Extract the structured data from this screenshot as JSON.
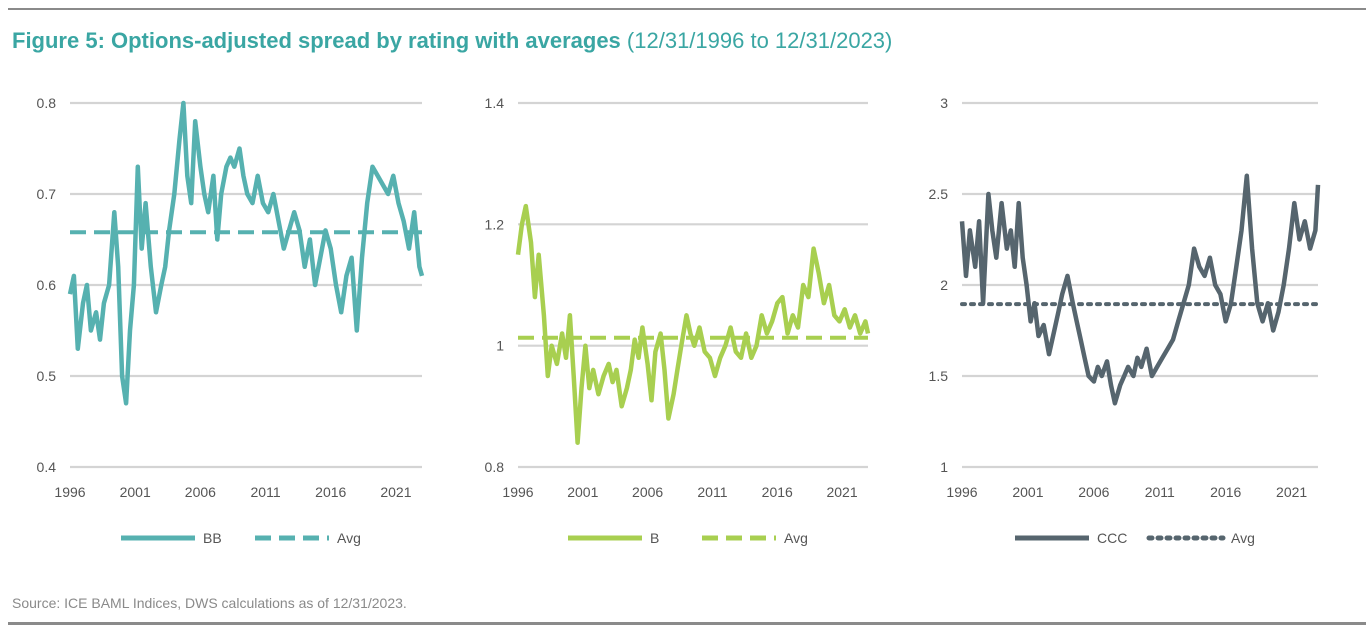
{
  "title": {
    "main": "Figure 5: Options-adjusted spread by rating with averages",
    "sub": "(12/31/1996 to 12/31/2023)"
  },
  "source": "Source: ICE BAML Indices, DWS calculations as of 12/31/2023.",
  "colors": {
    "title": "#3aa6a3",
    "grid": "#d4d4d4",
    "axis_text": "#555555",
    "rule": "#8a8a8a"
  },
  "chart_data": [
    {
      "type": "line",
      "x_ticks": [
        "1996",
        "2001",
        "2006",
        "2011",
        "2016",
        "2021"
      ],
      "y_ticks": [
        "0.8",
        "0.7",
        "0.6",
        "0.5",
        "0.4"
      ],
      "ylim": [
        0.4,
        0.8
      ],
      "xlim": [
        1996,
        2023
      ],
      "grid": "horizontal",
      "legend": "bottom-center",
      "series": [
        {
          "name": "BB",
          "color": "#56b1b0",
          "style": "solid",
          "x": [
            1996.0,
            1996.3,
            1996.6,
            1997.0,
            1997.3,
            1997.6,
            1998.0,
            1998.3,
            1998.6,
            1999.0,
            1999.4,
            1999.7,
            2000.0,
            2000.3,
            2000.6,
            2000.9,
            2001.2,
            2001.5,
            2001.8,
            2002.2,
            2002.6,
            2003.0,
            2003.3,
            2003.6,
            2004.0,
            2004.4,
            2004.7,
            2005.0,
            2005.3,
            2005.6,
            2006.0,
            2006.3,
            2006.6,
            2007.0,
            2007.3,
            2007.6,
            2008.0,
            2008.3,
            2008.6,
            2009.0,
            2009.3,
            2009.6,
            2010.0,
            2010.4,
            2010.8,
            2011.2,
            2011.6,
            2012.0,
            2012.4,
            2012.8,
            2013.2,
            2013.6,
            2014.0,
            2014.4,
            2014.8,
            2015.2,
            2015.6,
            2016.0,
            2016.4,
            2016.8,
            2017.2,
            2017.6,
            2018.0,
            2018.4,
            2018.8,
            2019.2,
            2019.6,
            2020.0,
            2020.4,
            2020.8,
            2021.2,
            2021.6,
            2022.0,
            2022.4,
            2022.8,
            2023.0
          ],
          "y": [
            0.59,
            0.61,
            0.53,
            0.58,
            0.6,
            0.55,
            0.57,
            0.54,
            0.58,
            0.6,
            0.68,
            0.62,
            0.5,
            0.47,
            0.55,
            0.6,
            0.73,
            0.64,
            0.69,
            0.62,
            0.57,
            0.6,
            0.62,
            0.66,
            0.7,
            0.76,
            0.8,
            0.72,
            0.69,
            0.78,
            0.73,
            0.7,
            0.68,
            0.72,
            0.65,
            0.7,
            0.73,
            0.74,
            0.73,
            0.75,
            0.72,
            0.7,
            0.69,
            0.72,
            0.69,
            0.68,
            0.7,
            0.67,
            0.64,
            0.66,
            0.68,
            0.66,
            0.62,
            0.65,
            0.6,
            0.63,
            0.66,
            0.64,
            0.6,
            0.57,
            0.61,
            0.63,
            0.55,
            0.63,
            0.69,
            0.73,
            0.72,
            0.71,
            0.7,
            0.72,
            0.69,
            0.67,
            0.64,
            0.68,
            0.62,
            0.61
          ]
        },
        {
          "name": "Avg",
          "color": "#56b1b0",
          "style": "dashed",
          "x": [
            1996,
            2023
          ],
          "y": [
            0.658,
            0.658
          ]
        }
      ]
    },
    {
      "type": "line",
      "x_ticks": [
        "1996",
        "2001",
        "2006",
        "2011",
        "2016",
        "2021"
      ],
      "y_ticks": [
        "1.4",
        "1.2",
        "1",
        "0.8"
      ],
      "ylim": [
        0.8,
        1.4
      ],
      "xlim": [
        1996,
        2023
      ],
      "grid": "horizontal",
      "legend": "bottom-center",
      "series": [
        {
          "name": "B",
          "color": "#a8cf50",
          "style": "solid",
          "x": [
            1996.0,
            1996.3,
            1996.6,
            1997.0,
            1997.3,
            1997.6,
            1998.0,
            1998.3,
            1998.6,
            1999.0,
            1999.4,
            1999.7,
            2000.0,
            2000.3,
            2000.6,
            2000.9,
            2001.2,
            2001.5,
            2001.8,
            2002.2,
            2002.6,
            2003.0,
            2003.3,
            2003.6,
            2004.0,
            2004.4,
            2004.7,
            2005.0,
            2005.3,
            2005.6,
            2006.0,
            2006.3,
            2006.6,
            2007.0,
            2007.3,
            2007.6,
            2008.0,
            2008.3,
            2008.6,
            2009.0,
            2009.3,
            2009.6,
            2010.0,
            2010.4,
            2010.8,
            2011.2,
            2011.6,
            2012.0,
            2012.4,
            2012.8,
            2013.2,
            2013.6,
            2014.0,
            2014.4,
            2014.8,
            2015.2,
            2015.6,
            2016.0,
            2016.4,
            2016.8,
            2017.2,
            2017.6,
            2018.0,
            2018.4,
            2018.8,
            2019.2,
            2019.6,
            2020.0,
            2020.4,
            2020.8,
            2021.2,
            2021.6,
            2022.0,
            2022.4,
            2022.8,
            2023.0
          ],
          "y": [
            1.15,
            1.2,
            1.23,
            1.17,
            1.08,
            1.15,
            1.05,
            0.95,
            1.0,
            0.97,
            1.02,
            0.98,
            1.05,
            0.95,
            0.84,
            0.93,
            1.0,
            0.93,
            0.96,
            0.92,
            0.95,
            0.97,
            0.94,
            0.96,
            0.9,
            0.93,
            0.96,
            1.01,
            0.98,
            1.03,
            0.97,
            0.91,
            0.99,
            1.02,
            0.96,
            0.88,
            0.92,
            0.96,
            1.0,
            1.05,
            1.02,
            1.0,
            1.03,
            0.99,
            0.98,
            0.95,
            0.98,
            1.0,
            1.03,
            0.99,
            0.98,
            1.02,
            0.98,
            1.0,
            1.05,
            1.02,
            1.04,
            1.07,
            1.08,
            1.02,
            1.05,
            1.03,
            1.1,
            1.08,
            1.16,
            1.12,
            1.07,
            1.1,
            1.05,
            1.04,
            1.06,
            1.03,
            1.05,
            1.02,
            1.04,
            1.02
          ]
        },
        {
          "name": "Avg",
          "color": "#a8cf50",
          "style": "dashed",
          "x": [
            1996,
            2023
          ],
          "y": [
            1.013,
            1.013
          ]
        }
      ]
    },
    {
      "type": "line",
      "x_ticks": [
        "1996",
        "2001",
        "2006",
        "2011",
        "2016",
        "2021"
      ],
      "y_ticks": [
        "3",
        "2.5",
        "2",
        "1.5",
        "1"
      ],
      "ylim": [
        1,
        3
      ],
      "xlim": [
        1996,
        2023
      ],
      "grid": "horizontal",
      "legend": "bottom-center",
      "series": [
        {
          "name": "CCC",
          "color": "#56656e",
          "style": "solid",
          "x": [
            1996.0,
            1996.3,
            1996.6,
            1997.0,
            1997.3,
            1997.6,
            1998.0,
            1998.3,
            1998.6,
            1999.0,
            1999.4,
            1999.7,
            2000.0,
            2000.3,
            2000.6,
            2000.9,
            2001.2,
            2001.5,
            2001.8,
            2002.2,
            2002.6,
            2003.0,
            2003.3,
            2003.6,
            2004.0,
            2004.4,
            2004.7,
            2005.0,
            2005.3,
            2005.6,
            2006.0,
            2006.3,
            2006.6,
            2007.0,
            2007.3,
            2007.6,
            2008.0,
            2008.3,
            2008.6,
            2009.0,
            2009.3,
            2009.6,
            2010.0,
            2010.4,
            2010.8,
            2011.2,
            2011.6,
            2012.0,
            2012.4,
            2012.8,
            2013.2,
            2013.6,
            2014.0,
            2014.4,
            2014.8,
            2015.2,
            2015.6,
            2016.0,
            2016.4,
            2016.8,
            2017.2,
            2017.6,
            2018.0,
            2018.4,
            2018.8,
            2019.2,
            2019.6,
            2020.0,
            2020.4,
            2020.8,
            2021.2,
            2021.6,
            2022.0,
            2022.4,
            2022.8,
            2023.0
          ],
          "y": [
            2.35,
            2.05,
            2.3,
            2.1,
            2.35,
            1.9,
            2.5,
            2.3,
            2.15,
            2.45,
            2.2,
            2.3,
            2.1,
            2.45,
            2.15,
            2.0,
            1.8,
            1.9,
            1.72,
            1.78,
            1.62,
            1.75,
            1.85,
            1.95,
            2.05,
            1.9,
            1.8,
            1.7,
            1.6,
            1.5,
            1.47,
            1.55,
            1.5,
            1.58,
            1.45,
            1.35,
            1.45,
            1.5,
            1.55,
            1.5,
            1.6,
            1.55,
            1.65,
            1.5,
            1.55,
            1.6,
            1.65,
            1.7,
            1.8,
            1.9,
            2.0,
            2.2,
            2.1,
            2.05,
            2.15,
            2.0,
            1.95,
            1.8,
            1.9,
            2.1,
            2.3,
            2.6,
            2.2,
            1.9,
            1.8,
            1.9,
            1.75,
            1.85,
            2.0,
            2.2,
            2.45,
            2.25,
            2.35,
            2.2,
            2.3,
            2.55
          ]
        },
        {
          "name": "Avg",
          "color": "#56656e",
          "style": "dotted",
          "x": [
            1996,
            2023
          ],
          "y": [
            1.895,
            1.895
          ]
        }
      ]
    }
  ]
}
